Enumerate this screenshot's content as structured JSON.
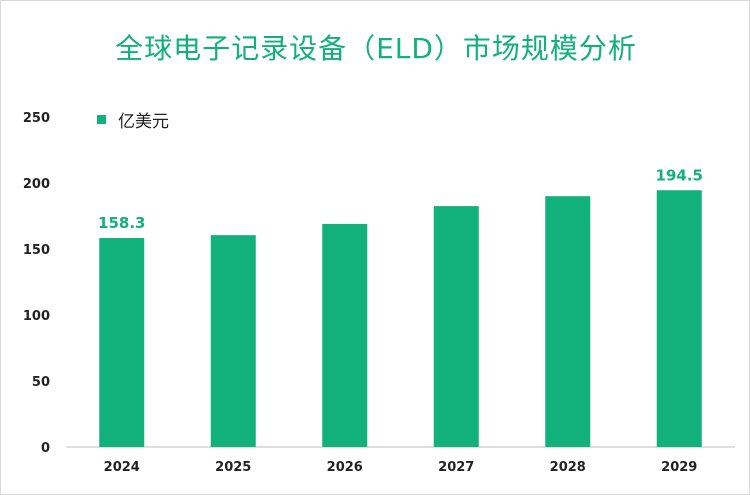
{
  "chart_data": {
    "type": "bar",
    "title": "全球电子记录设备（ELD）市场规模分析",
    "categories": [
      "2024",
      "2025",
      "2026",
      "2027",
      "2028",
      "2029"
    ],
    "series": [
      {
        "name": "亿美元",
        "values": [
          158.3,
          160.5,
          169.0,
          182.5,
          190.0,
          194.5
        ],
        "data_labels": [
          "158.3",
          "",
          "",
          "",
          "",
          "194.5"
        ]
      }
    ],
    "y_ticks": [
      "0",
      "50",
      "100",
      "150",
      "200",
      "250"
    ],
    "ylim": [
      0,
      250
    ],
    "xlabel": "",
    "ylabel": "",
    "grid": false,
    "legend_position": "top-left",
    "colors": {
      "bar": "#12b07a",
      "title": "#12b07a",
      "label": "#12b07a",
      "axis": "#bfbfbf"
    }
  }
}
